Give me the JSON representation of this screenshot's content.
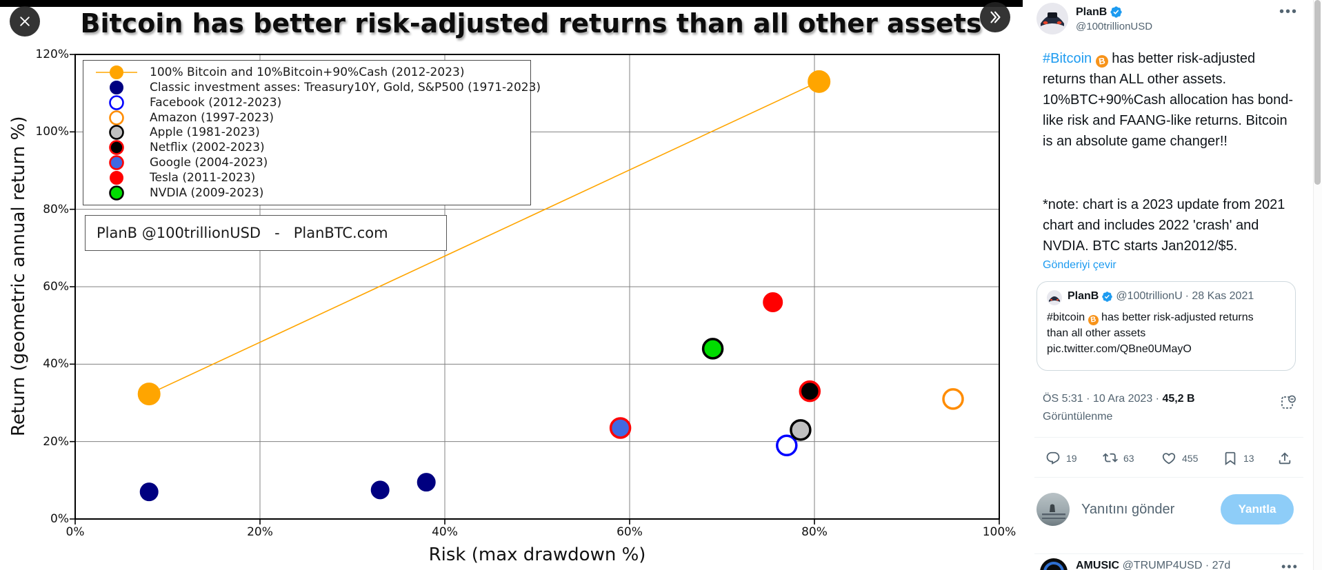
{
  "media_viewer": {
    "close_icon": "close-x",
    "next_icon": "chevrons-right"
  },
  "chart_data": {
    "type": "scatter",
    "title": "Bitcoin has better risk-adjusted returns than all other assets",
    "xlabel": "Risk (max drawdown %)",
    "ylabel": "Return (geometric annual return %)",
    "xlim": [
      0,
      100
    ],
    "ylim": [
      0,
      120
    ],
    "xtick_labels": [
      "0%",
      "20%",
      "40%",
      "60%",
      "80%",
      "100%"
    ],
    "ytick_labels": [
      "0%",
      "20%",
      "40%",
      "60%",
      "80%",
      "100%",
      "120%"
    ],
    "grid": true,
    "legend_position": "upper-left",
    "watermark": "PlanB @100trillionUSD   -   PlanBTC.com",
    "series": [
      {
        "name": "100% Bitcoin and 10%Bitcoin+90%Cash (2012-2023)",
        "marker": "line+dot",
        "color": "#FFA500",
        "edge": "#FFA500",
        "r": 16,
        "points": [
          [
            8,
            32.3
          ],
          [
            80.5,
            113
          ]
        ]
      },
      {
        "name": "Classic investment asses: Treasury10Y, Gold, S&P500 (1971-2023)",
        "marker": "dot",
        "color": "#000080",
        "edge": "#000080",
        "r": 13,
        "points": [
          [
            8,
            7
          ],
          [
            33,
            7.5
          ],
          [
            38,
            9.5
          ]
        ]
      },
      {
        "name": "Facebook (2012-2023)",
        "marker": "open",
        "color": "none",
        "edge": "#0000FF",
        "r": 14,
        "points": [
          [
            77,
            19
          ]
        ]
      },
      {
        "name": "Amazon (1997-2023)",
        "marker": "open",
        "color": "none",
        "edge": "#FF8C00",
        "r": 14,
        "points": [
          [
            95,
            31
          ]
        ]
      },
      {
        "name": "Apple (1981-2023)",
        "marker": "dot",
        "color": "#C0C0C0",
        "edge": "#000000",
        "r": 14,
        "points": [
          [
            78.5,
            23
          ]
        ]
      },
      {
        "name": "Netflix (2002-2023)",
        "marker": "dot",
        "color": "#000000",
        "edge": "#FF0000",
        "r": 14,
        "points": [
          [
            79.5,
            33
          ]
        ]
      },
      {
        "name": "Google (2004-2023)",
        "marker": "dot",
        "color": "#4169E1",
        "edge": "#FF0000",
        "r": 14,
        "points": [
          [
            59,
            23.5
          ]
        ]
      },
      {
        "name": "Tesla (2011-2023)",
        "marker": "dot",
        "color": "#FF0000",
        "edge": "#FF0000",
        "r": 14,
        "points": [
          [
            75.5,
            56
          ]
        ]
      },
      {
        "name": "NVDIA (2009-2023)",
        "marker": "dot",
        "color": "#00DD00",
        "edge": "#000000",
        "r": 14,
        "points": [
          [
            69,
            44
          ]
        ]
      }
    ]
  },
  "tweet": {
    "name": "PlanB",
    "handle": "@100trillionUSD",
    "hashtag": "#Bitcoin",
    "body": " has better risk-adjusted returns than ALL other assets. 10%BTC+90%Cash allocation has bond-like risk and FAANG-like returns. Bitcoin is an absolute game changer!!",
    "note": "*note: chart is a 2023 update from 2021 chart and includes 2022 'crash' and NVDIA. BTC starts Jan2012/$5.",
    "translate_label": "Gönderiyi çevir"
  },
  "quote": {
    "name": "PlanB",
    "handle": "@100trillionU",
    "date": "· 28 Kas 2021",
    "hashtag": "#bitcoin",
    "body": " has better risk-adjusted returns than all other assets",
    "link": "pic.twitter.com/QBne0UMayO"
  },
  "stats": {
    "time_date": "ÖS 5:31 · 10 Ara 2023 · ",
    "views_count": "45,2 B",
    "views_label": "Görüntülenme"
  },
  "actions": {
    "reply_count": "19",
    "retweet_count": "63",
    "like_count": "455",
    "bookmark_count": "13"
  },
  "reply_box": {
    "placeholder": "Yanıtını gönder",
    "button_label": "Yanıtla"
  },
  "next_tweet": {
    "name": "AMUSIC",
    "handle_date": "@TRUMP4USD · 27d"
  },
  "colors": {
    "accent_blue": "#1d9bf0",
    "bitcoin_orange": "#f7931a",
    "reply_button_bg": "#8ecdf8",
    "text_gray": "#536471"
  }
}
